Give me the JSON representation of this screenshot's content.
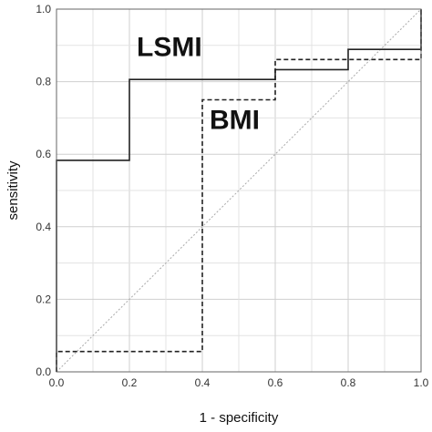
{
  "chart_data": {
    "type": "line",
    "title": "",
    "xlabel": "1 - specificity",
    "ylabel": "sensitivity",
    "xlim": [
      0,
      1
    ],
    "ylim": [
      0,
      1
    ],
    "x_ticks": [
      "0.0",
      "0.2",
      "0.4",
      "0.6",
      "0.8",
      "1.0"
    ],
    "y_ticks": [
      "0.0",
      "0.2",
      "0.4",
      "0.6",
      "0.8",
      "1.0"
    ],
    "grid": true,
    "legend": "none",
    "series": [
      {
        "name": "LSMI",
        "style": "solid",
        "color": "#222222",
        "points": [
          [
            0.0,
            0.0
          ],
          [
            0.0,
            0.583
          ],
          [
            0.2,
            0.583
          ],
          [
            0.2,
            0.806
          ],
          [
            0.6,
            0.806
          ],
          [
            0.6,
            0.833
          ],
          [
            0.8,
            0.833
          ],
          [
            0.8,
            0.889
          ],
          [
            1.0,
            0.889
          ],
          [
            1.0,
            1.0
          ]
        ]
      },
      {
        "name": "BMI",
        "style": "dashed",
        "color": "#222222",
        "points": [
          [
            0.0,
            0.0
          ],
          [
            0.0,
            0.056
          ],
          [
            0.4,
            0.056
          ],
          [
            0.4,
            0.75
          ],
          [
            0.6,
            0.75
          ],
          [
            0.6,
            0.861
          ],
          [
            1.0,
            0.861
          ],
          [
            1.0,
            1.0
          ]
        ]
      },
      {
        "name": "",
        "style": "dotted",
        "color": "#aaaaaa",
        "points": [
          [
            0,
            0
          ],
          [
            1,
            1
          ]
        ]
      }
    ],
    "annotations": [
      {
        "text": "LSMI",
        "series": 0,
        "x": 0.22,
        "y": 0.87
      },
      {
        "text": "BMI",
        "series": 1,
        "x": 0.42,
        "y": 0.67
      }
    ]
  }
}
